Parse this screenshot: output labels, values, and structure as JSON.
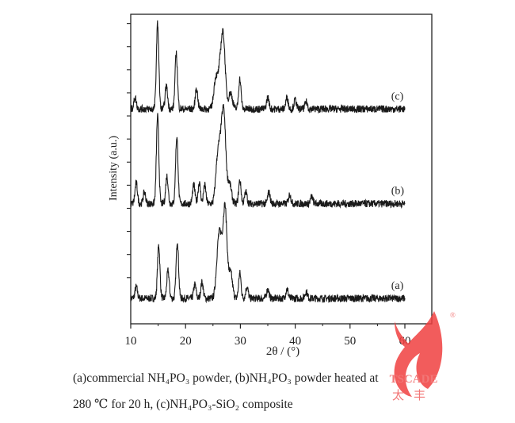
{
  "chart_data": {
    "type": "line",
    "title": "",
    "xlabel": "2θ / (°)",
    "ylabel": "Intensity (a.u.)",
    "xlim": [
      10,
      65
    ],
    "ylim": [
      0,
      13.4
    ],
    "xticks": [
      10,
      20,
      30,
      40,
      50,
      60
    ],
    "y_tick_labels_shown": false,
    "grid": false,
    "legend": "inline labels at right",
    "line_color": "#1a1a1a",
    "series": [
      {
        "name": "(a)",
        "baseline": 1.1,
        "peaks": [
          [
            11.0,
            1.6
          ],
          [
            15.1,
            3.4
          ],
          [
            16.8,
            2.3
          ],
          [
            18.5,
            3.6
          ],
          [
            21.7,
            1.7
          ],
          [
            23.0,
            1.8
          ],
          [
            25.9,
            2.8
          ],
          [
            26.4,
            3.1
          ],
          [
            27.2,
            5.0
          ],
          [
            28.2,
            2.2
          ],
          [
            29.9,
            2.2
          ],
          [
            31.2,
            1.6
          ],
          [
            35.0,
            1.5
          ],
          [
            38.5,
            1.5
          ],
          [
            42.0,
            1.4
          ]
        ]
      },
      {
        "name": "(b)",
        "baseline": 5.2,
        "peaks": [
          [
            11.0,
            6.1
          ],
          [
            12.5,
            5.7
          ],
          [
            14.9,
            9.0
          ],
          [
            16.6,
            6.4
          ],
          [
            18.4,
            8.1
          ],
          [
            21.5,
            6.0
          ],
          [
            22.5,
            6.1
          ],
          [
            23.5,
            6.0
          ],
          [
            25.8,
            6.9
          ],
          [
            26.4,
            7.2
          ],
          [
            27.0,
            8.8
          ],
          [
            28.0,
            6.1
          ],
          [
            29.9,
            6.2
          ],
          [
            31.0,
            5.7
          ],
          [
            35.2,
            5.7
          ],
          [
            39.0,
            5.6
          ],
          [
            43.0,
            5.5
          ]
        ]
      },
      {
        "name": "(c)",
        "baseline": 9.3,
        "peaks": [
          [
            10.8,
            9.8
          ],
          [
            14.9,
            13.0
          ],
          [
            16.5,
            10.3
          ],
          [
            18.3,
            11.7
          ],
          [
            22.0,
            10.2
          ],
          [
            25.5,
            10.6
          ],
          [
            26.3,
            10.9
          ],
          [
            26.9,
            12.2
          ],
          [
            28.2,
            10.0
          ],
          [
            29.9,
            10.6
          ],
          [
            35.0,
            9.8
          ],
          [
            38.5,
            9.8
          ],
          [
            40.0,
            9.7
          ],
          [
            42.0,
            9.6
          ]
        ]
      }
    ]
  },
  "caption": {
    "line1": "(a)commercial NH₄PO₃ powder, (b)NH₄PO₃ powder heated at",
    "line2": "280 ℃ for 20 h, (c)NH₄PO₃-SiO₂ composite"
  },
  "watermark": {
    "brand": "TSCADE",
    "chinese": "太丰",
    "mark": "®",
    "color": "#f04040"
  }
}
